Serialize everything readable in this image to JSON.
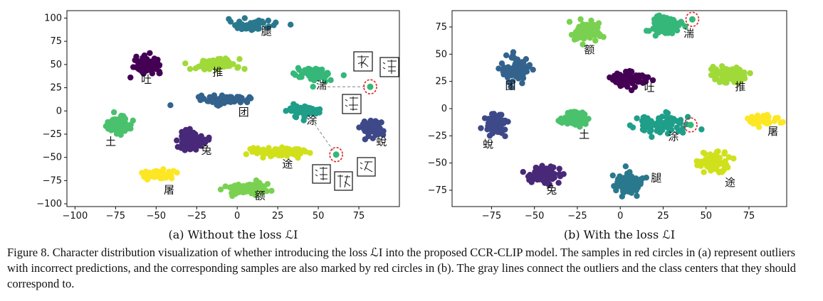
{
  "figure": {
    "caption": "Figure 8. Character distribution visualization of whether introducing the loss ℒI into the proposed CCR-CLIP model. The samples in red circles in (a) represent outliers with incorrect predictions, and the corresponding samples are also marked by red circles in (b). The gray lines connect the outliers and the class centers that they should correspond to."
  },
  "chart_data": [
    {
      "type": "scatter",
      "subtitle": "(a) Without the loss ℒI",
      "xlim": [
        -105,
        100
      ],
      "ylim": [
        -103,
        108
      ],
      "xticks": [
        -100,
        -75,
        -50,
        -25,
        0,
        25,
        50,
        75
      ],
      "yticks": [
        -100,
        -75,
        -50,
        -25,
        0,
        25,
        50,
        75,
        100
      ],
      "grid": false,
      "clusters": [
        {
          "label": "腿",
          "color": "#2a788e",
          "cx": 8,
          "cy": 92,
          "sx": 8,
          "sy": 3,
          "n": 80,
          "lx": 18,
          "ly": 82
        },
        {
          "label": "推",
          "color": "#a0da39",
          "cx": -14,
          "cy": 50,
          "sx": 10,
          "sy": 4,
          "n": 80,
          "lx": -12,
          "ly": 38
        },
        {
          "label": "吐",
          "color": "#440154",
          "cx": -55,
          "cy": 50,
          "sx": 5,
          "sy": 5,
          "n": 80,
          "lx": -56,
          "ly": 30
        },
        {
          "label": "团",
          "color": "#33638d",
          "cx": -7,
          "cy": 12,
          "sx": 10,
          "sy": 3,
          "n": 80,
          "lx": 4,
          "ly": -5
        },
        {
          "label": "湍",
          "color": "#35b779",
          "cx": 48,
          "cy": 39,
          "sx": 7,
          "sy": 4,
          "n": 80,
          "lx": 52,
          "ly": 24
        },
        {
          "label": "涂",
          "color": "#1f9e89",
          "cx": 41,
          "cy": 0,
          "sx": 6,
          "sy": 4,
          "n": 70,
          "lx": 46,
          "ly": -14
        },
        {
          "label": "蛻",
          "color": "#3e4989",
          "cx": 83,
          "cy": -18,
          "sx": 4,
          "sy": 6,
          "n": 80,
          "lx": 89,
          "ly": -37
        },
        {
          "label": "土",
          "color": "#4ac16d",
          "cx": -73,
          "cy": -15,
          "sx": 4,
          "sy": 6,
          "n": 80,
          "lx": -78,
          "ly": -37
        },
        {
          "label": "兔",
          "color": "#482878",
          "cx": -28,
          "cy": -31,
          "sx": 5,
          "sy": 6,
          "n": 80,
          "lx": -19,
          "ly": -46
        },
        {
          "label": "途",
          "color": "#d0e11c",
          "cx": 25,
          "cy": -44,
          "sx": 10,
          "sy": 3,
          "n": 80,
          "lx": 31,
          "ly": -61
        },
        {
          "label": "屠",
          "color": "#fde725",
          "cx": -48,
          "cy": -69,
          "sx": 6,
          "sy": 3,
          "n": 60,
          "lx": -42,
          "ly": -89
        },
        {
          "label": "额",
          "color": "#7ad151",
          "cx": 6,
          "cy": -84,
          "sx": 9,
          "sy": 4,
          "n": 80,
          "lx": 14,
          "ly": -95
        }
      ],
      "outliers": [
        {
          "x": 82,
          "y": 26,
          "color": "#35b779"
        },
        {
          "x": 61,
          "y": -47,
          "color": "#35b779"
        }
      ],
      "gray_lines": [
        {
          "from": [
            82,
            26
          ],
          "to": [
            55,
            26
          ]
        },
        {
          "from": [
            61,
            -47
          ],
          "to": [
            44,
            -5
          ]
        }
      ]
    },
    {
      "type": "scatter",
      "subtitle": "(b) With the loss ℒI",
      "xlim": [
        -98,
        97
      ],
      "ylim": [
        -90,
        90
      ],
      "xticks": [
        -75,
        -50,
        -25,
        0,
        25,
        50,
        75
      ],
      "yticks": [
        -75,
        -50,
        -25,
        0,
        25,
        50,
        75
      ],
      "grid": false,
      "clusters": [
        {
          "label": "额",
          "color": "#7ad151",
          "cx": -20,
          "cy": 70,
          "sx": 6,
          "sy": 5,
          "n": 80,
          "lx": -18,
          "ly": 51
        },
        {
          "label": "湍",
          "color": "#35b779",
          "cx": 27,
          "cy": 76,
          "sx": 5,
          "sy": 5,
          "n": 80,
          "lx": 40,
          "ly": 66
        },
        {
          "label": "团",
          "color": "#33638d",
          "cx": -61,
          "cy": 36,
          "sx": 5,
          "sy": 7,
          "n": 80,
          "lx": -64,
          "ly": 18
        },
        {
          "label": "吐",
          "color": "#440154",
          "cx": 5,
          "cy": 27,
          "sx": 6,
          "sy": 4,
          "n": 80,
          "lx": 17,
          "ly": 16
        },
        {
          "label": "推",
          "color": "#a0da39",
          "cx": 63,
          "cy": 32,
          "sx": 6,
          "sy": 5,
          "n": 80,
          "lx": 70,
          "ly": 17
        },
        {
          "label": "蛻",
          "color": "#3e4989",
          "cx": -73,
          "cy": -15,
          "sx": 4,
          "sy": 6,
          "n": 80,
          "lx": -77,
          "ly": -36
        },
        {
          "label": "土",
          "color": "#4ac16d",
          "cx": -26,
          "cy": -10,
          "sx": 6,
          "sy": 4,
          "n": 80,
          "lx": -21,
          "ly": -27
        },
        {
          "label": "涂",
          "color": "#1f9e89",
          "cx": 25,
          "cy": -14,
          "sx": 10,
          "sy": 5,
          "n": 80,
          "lx": 31,
          "ly": -29
        },
        {
          "label": "屠",
          "color": "#fde725",
          "cx": 83,
          "cy": -10,
          "sx": 5,
          "sy": 3,
          "n": 50,
          "lx": 89,
          "ly": -24
        },
        {
          "label": "兔",
          "color": "#482878",
          "cx": -44,
          "cy": -61,
          "sx": 6,
          "sy": 5,
          "n": 80,
          "lx": -40,
          "ly": -78
        },
        {
          "label": "腿",
          "color": "#2a788e",
          "cx": 5,
          "cy": -69,
          "sx": 5,
          "sy": 6,
          "n": 80,
          "lx": 21,
          "ly": -67
        },
        {
          "label": "途",
          "color": "#d0e11c",
          "cx": 55,
          "cy": -50,
          "sx": 6,
          "sy": 5,
          "n": 80,
          "lx": 64,
          "ly": -71
        }
      ],
      "outliers": [
        {
          "x": 42,
          "y": 82,
          "color": "#35b779"
        },
        {
          "x": 41,
          "y": -15,
          "color": "#35b779"
        }
      ],
      "gray_lines": []
    }
  ]
}
